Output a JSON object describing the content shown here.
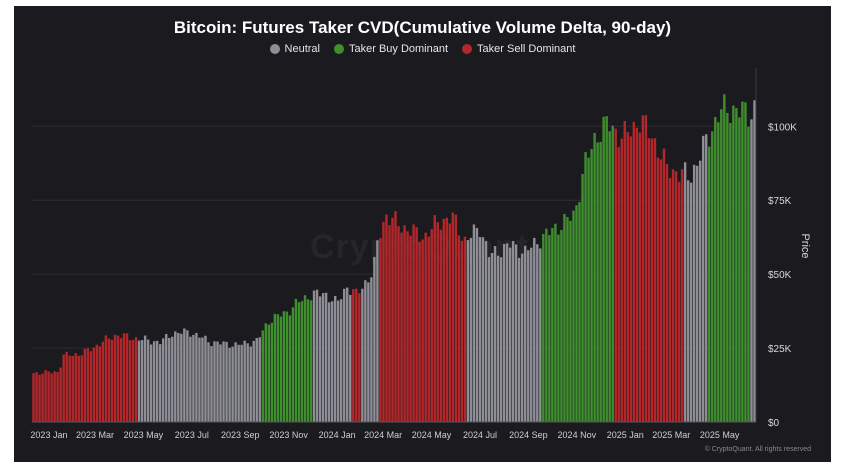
{
  "title": "Bitcoin: Futures Taker CVD(Cumulative Volume Delta, 90-day)",
  "legend": [
    {
      "label": "Neutral",
      "color": "#8e8e96"
    },
    {
      "label": "Taker Buy Dominant",
      "color": "#3f8f2f"
    },
    {
      "label": "Taker Sell Dominant",
      "color": "#b3272a"
    }
  ],
  "watermark": "CryptoQuant",
  "credit": "© CryptoQuant. All rights reserved",
  "chart_data": {
    "type": "bar",
    "ylabel": "Price",
    "ylim": [
      0,
      117000
    ],
    "yticks": [
      {
        "value": 0,
        "label": "$0"
      },
      {
        "value": 25000,
        "label": "$25K"
      },
      {
        "value": 50000,
        "label": "$50K"
      },
      {
        "value": 75000,
        "label": "$75K"
      },
      {
        "value": 100000,
        "label": "$100K"
      }
    ],
    "xticks": [
      {
        "x": 0.7,
        "label": "2023 Jan"
      },
      {
        "x": 2.6,
        "label": "2023 Mar"
      },
      {
        "x": 4.6,
        "label": "2023 May"
      },
      {
        "x": 6.6,
        "label": "2023 Jul"
      },
      {
        "x": 8.6,
        "label": "2023 Sep"
      },
      {
        "x": 10.6,
        "label": "2023 Nov"
      },
      {
        "x": 12.6,
        "label": "2024 Jan"
      },
      {
        "x": 14.5,
        "label": "2024 Mar"
      },
      {
        "x": 16.5,
        "label": "2024 May"
      },
      {
        "x": 18.5,
        "label": "2024 Jul"
      },
      {
        "x": 20.5,
        "label": "2024 Sep"
      },
      {
        "x": 22.5,
        "label": "2024 Nov"
      },
      {
        "x": 24.5,
        "label": "2025 Jan"
      },
      {
        "x": 26.4,
        "label": "2025 Mar"
      },
      {
        "x": 28.4,
        "label": "2025 May"
      }
    ],
    "x_range": [
      0,
      29.9
    ],
    "x_unit": "months since 2023 Jan 1",
    "price_path": [
      [
        0,
        16500
      ],
      [
        1.1,
        17000
      ],
      [
        1.3,
        22500
      ],
      [
        2.0,
        23000
      ],
      [
        2.5,
        25000
      ],
      [
        3.1,
        28000
      ],
      [
        3.5,
        29500
      ],
      [
        4.1,
        28500
      ],
      [
        5.3,
        27000
      ],
      [
        5.8,
        30000
      ],
      [
        6.5,
        30500
      ],
      [
        7.4,
        27000
      ],
      [
        8.5,
        26000
      ],
      [
        9.3,
        27500
      ],
      [
        9.8,
        34500
      ],
      [
        10.5,
        37000
      ],
      [
        11.0,
        40500
      ],
      [
        11.5,
        43000
      ],
      [
        12.1,
        43500
      ],
      [
        12.6,
        40000
      ],
      [
        13.0,
        46000
      ],
      [
        13.4,
        43000
      ],
      [
        14.1,
        51000
      ],
      [
        14.3,
        62000
      ],
      [
        14.6,
        70000
      ],
      [
        15.3,
        66000
      ],
      [
        16.2,
        62500
      ],
      [
        16.8,
        68000
      ],
      [
        17.4,
        69000
      ],
      [
        17.9,
        61000
      ],
      [
        18.5,
        66000
      ],
      [
        18.9,
        56000
      ],
      [
        19.7,
        60000
      ],
      [
        20.4,
        57500
      ],
      [
        21.0,
        62000
      ],
      [
        21.7,
        66000
      ],
      [
        22.4,
        70000
      ],
      [
        22.8,
        86000
      ],
      [
        23.3,
        97000
      ],
      [
        23.8,
        101000
      ],
      [
        24.4,
        96000
      ],
      [
        25.1,
        102000
      ],
      [
        25.6,
        97000
      ],
      [
        26.2,
        86000
      ],
      [
        26.8,
        84000
      ],
      [
        27.2,
        83000
      ],
      [
        27.8,
        94000
      ],
      [
        28.4,
        105000
      ],
      [
        29.0,
        106000
      ],
      [
        29.6,
        104000
      ],
      [
        29.9,
        107000
      ]
    ],
    "regimes": [
      {
        "from": 0,
        "to": 4.3,
        "state": "Taker Sell Dominant"
      },
      {
        "from": 4.3,
        "to": 7.7,
        "state": "Neutral"
      },
      {
        "from": 7.7,
        "to": 9.5,
        "state": "Neutral"
      },
      {
        "from": 9.5,
        "to": 11.6,
        "state": "Taker Buy Dominant"
      },
      {
        "from": 11.6,
        "to": 13.2,
        "state": "Neutral"
      },
      {
        "from": 13.2,
        "to": 13.6,
        "state": "Taker Sell Dominant"
      },
      {
        "from": 13.6,
        "to": 14.3,
        "state": "Neutral"
      },
      {
        "from": 14.3,
        "to": 18.0,
        "state": "Taker Sell Dominant"
      },
      {
        "from": 18.0,
        "to": 21.1,
        "state": "Neutral"
      },
      {
        "from": 21.1,
        "to": 24.0,
        "state": "Taker Buy Dominant"
      },
      {
        "from": 24.0,
        "to": 26.9,
        "state": "Taker Sell Dominant"
      },
      {
        "from": 26.9,
        "to": 27.9,
        "state": "Neutral"
      },
      {
        "from": 27.9,
        "to": 29.7,
        "state": "Taker Buy Dominant"
      },
      {
        "from": 29.7,
        "to": 29.9,
        "state": "Neutral"
      }
    ]
  }
}
